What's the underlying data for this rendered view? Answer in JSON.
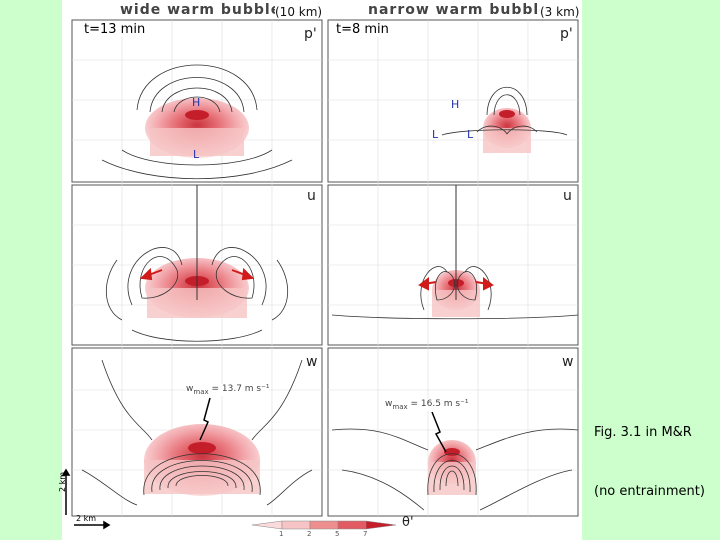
{
  "headers": {
    "wide_title": "wide warm bubble",
    "wide_size": "(10 km)",
    "narrow_title": "narrow warm bubble",
    "narrow_size": "(3 km)"
  },
  "times": {
    "left": "t=13 min",
    "right": "t=8 min"
  },
  "panel_labels": {
    "pressure": "p'",
    "u": "u",
    "w": "w"
  },
  "markers": {
    "high": "H",
    "low": "L"
  },
  "wmax": {
    "wide": {
      "prefix": "w",
      "subscript": "max",
      "value": " = 13.7 m s⁻¹"
    },
    "narrow": {
      "prefix": "w",
      "subscript": "max",
      "value": " = 16.5 m s⁻¹"
    }
  },
  "scale": {
    "vertical": "2 km",
    "horizontal": "2 km"
  },
  "colorbar": {
    "ticks": [
      "1",
      "2",
      "5",
      "7"
    ],
    "label": "θ'"
  },
  "caption": {
    "figure": "Fig. 3.1 in M&R",
    "note": "(no entrainment)"
  },
  "colors": {
    "background": "#ccffcc",
    "warm_light": "#f6c4c4",
    "warm_mid": "#ee8f8f",
    "warm_dark": "#d9444d",
    "core": "#c41e2a",
    "arrow": "#d11a1a",
    "marker_blue": "#2233aa"
  }
}
